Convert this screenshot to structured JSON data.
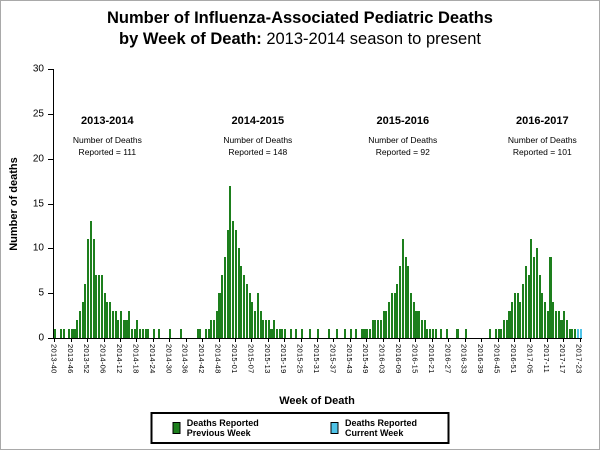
{
  "title": {
    "line1": "Number of Influenza-Associated Pediatric Deaths",
    "line2_bold": "by Week of Death:",
    "line2_normal": " 2013-2014 season to present"
  },
  "chart_data": {
    "type": "bar",
    "title": "Number of Influenza-Associated Pediatric Deaths by Week of Death: 2013-2014 season to present",
    "ylabel": "Number of deaths",
    "xlabel": "Week of Death",
    "ylim": [
      0,
      30
    ],
    "yticks": [
      0,
      5,
      10,
      15,
      20,
      25,
      30
    ],
    "grid": false,
    "tick_every": 6,
    "x_tick_labels": [
      "2013-40",
      "2013-46",
      "2013-52",
      "2014-06",
      "2014-12",
      "2014-18",
      "2014-24",
      "2014-30",
      "2014-36",
      "2014-42",
      "2014-48",
      "2015-01",
      "2015-07",
      "2015-13",
      "2015-19",
      "2015-25",
      "2015-31",
      "2015-37",
      "2015-43",
      "2015-49",
      "2016-03",
      "2016-09",
      "2016-15",
      "2016-21",
      "2016-27",
      "2016-33",
      "2016-39",
      "2016-45",
      "2016-51",
      "2017-05",
      "2017-11",
      "2017-17",
      "2017-23"
    ],
    "values": [
      1,
      0,
      1,
      1,
      0,
      1,
      1,
      1,
      2,
      3,
      4,
      6,
      11,
      13,
      11,
      7,
      7,
      7,
      5,
      4,
      4,
      3,
      3,
      2,
      3,
      2,
      2,
      3,
      1,
      1,
      2,
      1,
      1,
      1,
      1,
      0,
      1,
      0,
      1,
      0,
      0,
      0,
      1,
      0,
      0,
      0,
      1,
      0,
      0,
      0,
      0,
      0,
      1,
      1,
      0,
      1,
      1,
      2,
      2,
      3,
      5,
      7,
      9,
      12,
      17,
      13,
      12,
      10,
      8,
      7,
      6,
      5,
      4,
      3,
      5,
      3,
      2,
      2,
      2,
      1,
      2,
      1,
      1,
      1,
      1,
      0,
      1,
      0,
      1,
      0,
      1,
      0,
      0,
      1,
      0,
      0,
      1,
      0,
      0,
      0,
      1,
      0,
      0,
      1,
      0,
      0,
      1,
      0,
      1,
      0,
      1,
      0,
      1,
      1,
      1,
      1,
      2,
      2,
      2,
      2,
      3,
      3,
      4,
      5,
      5,
      6,
      8,
      11,
      9,
      8,
      5,
      4,
      3,
      3,
      2,
      2,
      1,
      1,
      1,
      1,
      0,
      1,
      0,
      1,
      0,
      0,
      0,
      1,
      0,
      0,
      1,
      0,
      0,
      0,
      0,
      0,
      0,
      0,
      0,
      1,
      0,
      1,
      1,
      1,
      2,
      2,
      3,
      4,
      5,
      5,
      4,
      6,
      8,
      7,
      11,
      9,
      10,
      7,
      5,
      4,
      3,
      9,
      4,
      3,
      3,
      2,
      3,
      2,
      1,
      1,
      1,
      1,
      1
    ],
    "current_week_indices": [
      191,
      192
    ],
    "colors": {
      "previous": "#1d7f1d",
      "current": "#4fc3e7"
    },
    "seasons": [
      {
        "name": "2013-2014",
        "note_line1": "Number of Deaths",
        "note_line2": "Reported = 111",
        "center_index": 19
      },
      {
        "name": "2014-2015",
        "note_line1": "Number of Deaths",
        "note_line2": "Reported = 148",
        "center_index": 74
      },
      {
        "name": "2015-2016",
        "note_line1": "Number of Deaths",
        "note_line2": "Reported = 92",
        "center_index": 127
      },
      {
        "name": "2016-2017",
        "note_line1": "Number of Deaths",
        "note_line2": "Reported = 101",
        "center_index": 178
      }
    ],
    "legend": [
      {
        "label": "Deaths Reported Previous Week",
        "color_key": "previous"
      },
      {
        "label": "Deaths Reported Current Week",
        "color_key": "current"
      }
    ]
  }
}
